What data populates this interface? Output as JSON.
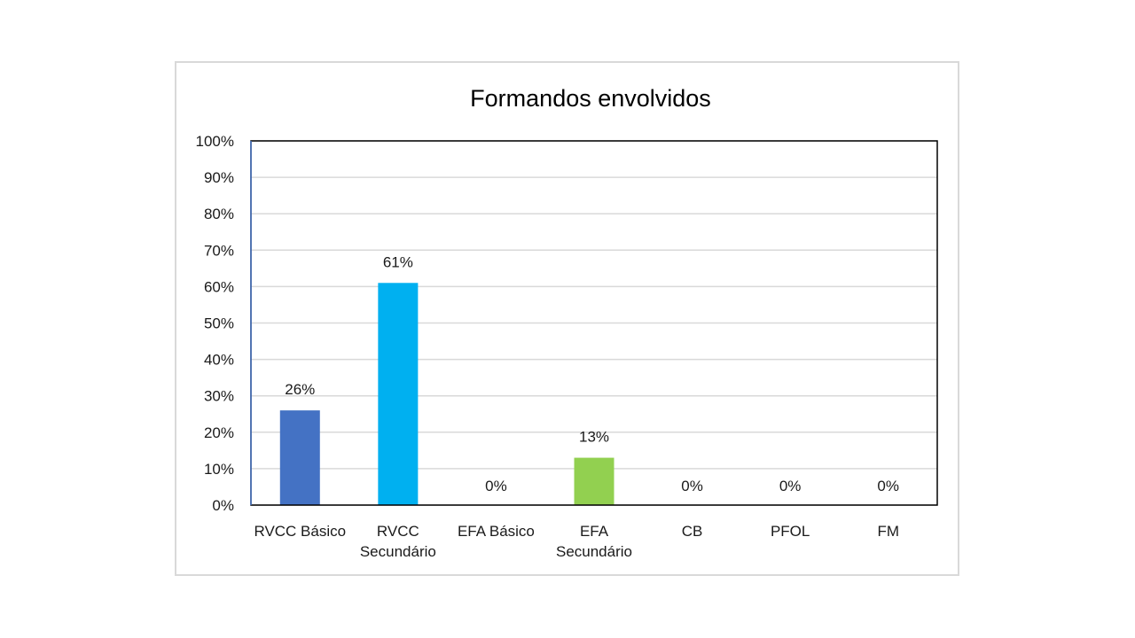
{
  "chart_data": {
    "type": "bar",
    "title": "Formandos envolvidos",
    "categories": [
      "RVCC Básico",
      "RVCC Secundário",
      "EFA Básico",
      "EFA Secundário",
      "CB",
      "PFOL",
      "FM"
    ],
    "values": [
      0.26,
      0.61,
      0,
      0.13,
      0,
      0,
      0
    ],
    "data_labels": [
      "26%",
      "61%",
      "0%",
      "13%",
      "0%",
      "0%",
      "0%"
    ],
    "colors": [
      "#4472c4",
      "#00b0f0",
      "#a5a5a5",
      "#92d050",
      "#a5a5a5",
      "#a5a5a5",
      "#a5a5a5"
    ],
    "ylim": [
      0,
      1
    ],
    "yticks": [
      "0%",
      "10%",
      "20%",
      "30%",
      "40%",
      "50%",
      "60%",
      "70%",
      "80%",
      "90%",
      "100%"
    ],
    "xlabel": "",
    "ylabel": "",
    "grid": true,
    "legend": "none"
  }
}
